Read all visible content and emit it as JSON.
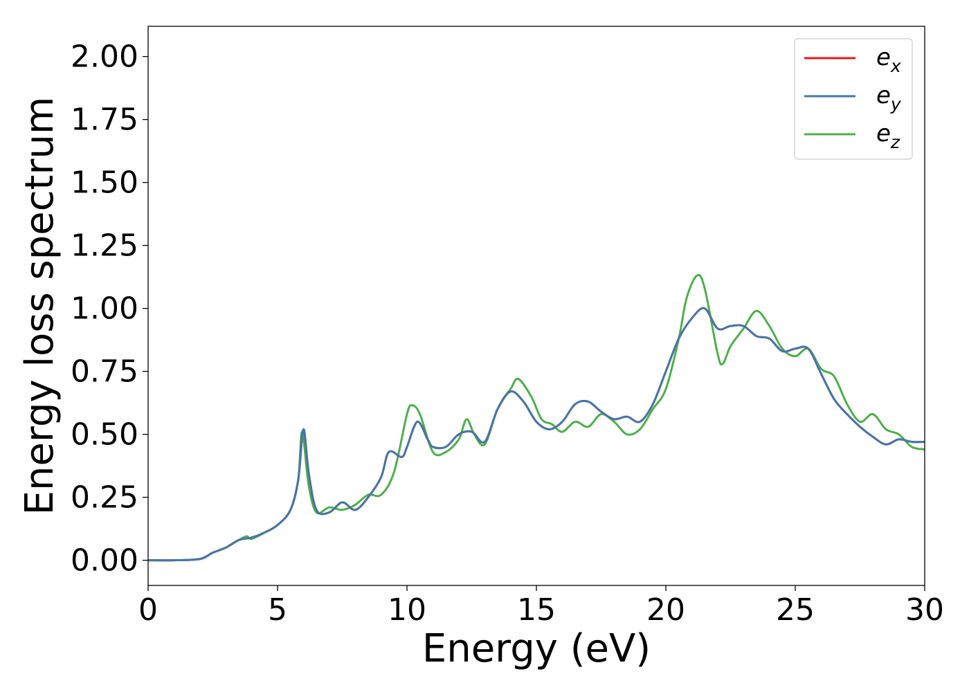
{
  "chart_data": {
    "type": "line",
    "title": "",
    "xlabel": "Energy (eV)",
    "ylabel": "Energy loss spectrum",
    "xlim": [
      0,
      30
    ],
    "ylim": [
      -0.1,
      2.12
    ],
    "x_ticks": [
      "0",
      "5",
      "10",
      "15",
      "20",
      "25",
      "30"
    ],
    "y_ticks": [
      "0.00",
      "0.25",
      "0.50",
      "0.75",
      "1.00",
      "1.25",
      "1.50",
      "1.75",
      "2.00"
    ],
    "grid": false,
    "legend_position": "top-right",
    "series": [
      {
        "name": "e_x",
        "label_base": "e",
        "label_sub": "x",
        "color": "#e41a1c",
        "points": [
          [
            0,
            0.0
          ],
          [
            1,
            0.0
          ],
          [
            2,
            0.005
          ],
          [
            2.5,
            0.03
          ],
          [
            3,
            0.05
          ],
          [
            3.5,
            0.08
          ],
          [
            4,
            0.09
          ],
          [
            4.5,
            0.11
          ],
          [
            5,
            0.14
          ],
          [
            5.5,
            0.2
          ],
          [
            5.8,
            0.32
          ],
          [
            6.0,
            0.52
          ],
          [
            6.2,
            0.35
          ],
          [
            6.5,
            0.2
          ],
          [
            7,
            0.19
          ],
          [
            7.5,
            0.23
          ],
          [
            8,
            0.2
          ],
          [
            8.5,
            0.25
          ],
          [
            9,
            0.33
          ],
          [
            9.3,
            0.43
          ],
          [
            9.8,
            0.41
          ],
          [
            10,
            0.45
          ],
          [
            10.4,
            0.55
          ],
          [
            10.8,
            0.48
          ],
          [
            11,
            0.45
          ],
          [
            11.5,
            0.45
          ],
          [
            12,
            0.5
          ],
          [
            12.5,
            0.51
          ],
          [
            13,
            0.47
          ],
          [
            13.5,
            0.6
          ],
          [
            14,
            0.67
          ],
          [
            14.5,
            0.63
          ],
          [
            15,
            0.55
          ],
          [
            15.5,
            0.52
          ],
          [
            16,
            0.55
          ],
          [
            16.5,
            0.62
          ],
          [
            17,
            0.63
          ],
          [
            17.5,
            0.59
          ],
          [
            18,
            0.56
          ],
          [
            18.5,
            0.57
          ],
          [
            19,
            0.55
          ],
          [
            19.5,
            0.62
          ],
          [
            20,
            0.75
          ],
          [
            20.5,
            0.88
          ],
          [
            21,
            0.96
          ],
          [
            21.5,
            1.0
          ],
          [
            22,
            0.92
          ],
          [
            22.5,
            0.93
          ],
          [
            23,
            0.93
          ],
          [
            23.5,
            0.89
          ],
          [
            24,
            0.88
          ],
          [
            24.5,
            0.83
          ],
          [
            25,
            0.84
          ],
          [
            25.5,
            0.84
          ],
          [
            26,
            0.74
          ],
          [
            26.5,
            0.64
          ],
          [
            27,
            0.58
          ],
          [
            27.5,
            0.53
          ],
          [
            28,
            0.49
          ],
          [
            28.5,
            0.46
          ],
          [
            29,
            0.48
          ],
          [
            29.5,
            0.47
          ],
          [
            30,
            0.47
          ]
        ]
      },
      {
        "name": "e_y",
        "label_base": "e",
        "label_sub": "y",
        "color": "#4477aa",
        "points": [
          [
            0,
            0.0
          ],
          [
            1,
            0.0
          ],
          [
            2,
            0.005
          ],
          [
            2.5,
            0.03
          ],
          [
            3,
            0.05
          ],
          [
            3.5,
            0.08
          ],
          [
            4,
            0.09
          ],
          [
            4.5,
            0.11
          ],
          [
            5,
            0.14
          ],
          [
            5.5,
            0.2
          ],
          [
            5.8,
            0.32
          ],
          [
            6.0,
            0.52
          ],
          [
            6.2,
            0.35
          ],
          [
            6.5,
            0.2
          ],
          [
            7,
            0.19
          ],
          [
            7.5,
            0.23
          ],
          [
            8,
            0.2
          ],
          [
            8.5,
            0.25
          ],
          [
            9,
            0.33
          ],
          [
            9.3,
            0.43
          ],
          [
            9.8,
            0.41
          ],
          [
            10,
            0.45
          ],
          [
            10.4,
            0.55
          ],
          [
            10.8,
            0.48
          ],
          [
            11,
            0.45
          ],
          [
            11.5,
            0.45
          ],
          [
            12,
            0.5
          ],
          [
            12.5,
            0.51
          ],
          [
            13,
            0.47
          ],
          [
            13.5,
            0.6
          ],
          [
            14,
            0.67
          ],
          [
            14.5,
            0.63
          ],
          [
            15,
            0.55
          ],
          [
            15.5,
            0.52
          ],
          [
            16,
            0.55
          ],
          [
            16.5,
            0.62
          ],
          [
            17,
            0.63
          ],
          [
            17.5,
            0.59
          ],
          [
            18,
            0.56
          ],
          [
            18.5,
            0.57
          ],
          [
            19,
            0.55
          ],
          [
            19.5,
            0.62
          ],
          [
            20,
            0.75
          ],
          [
            20.5,
            0.88
          ],
          [
            21,
            0.96
          ],
          [
            21.5,
            1.0
          ],
          [
            22,
            0.92
          ],
          [
            22.5,
            0.93
          ],
          [
            23,
            0.93
          ],
          [
            23.5,
            0.89
          ],
          [
            24,
            0.88
          ],
          [
            24.5,
            0.83
          ],
          [
            25,
            0.84
          ],
          [
            25.5,
            0.84
          ],
          [
            26,
            0.74
          ],
          [
            26.5,
            0.64
          ],
          [
            27,
            0.58
          ],
          [
            27.5,
            0.53
          ],
          [
            28,
            0.49
          ],
          [
            28.5,
            0.46
          ],
          [
            29,
            0.48
          ],
          [
            29.5,
            0.47
          ],
          [
            30,
            0.47
          ]
        ]
      },
      {
        "name": "e_z",
        "label_base": "e",
        "label_sub": "z",
        "color": "#4daf4a",
        "points": [
          [
            0,
            0.0
          ],
          [
            1,
            0.0
          ],
          [
            2,
            0.005
          ],
          [
            2.5,
            0.03
          ],
          [
            3,
            0.05
          ],
          [
            3.5,
            0.08
          ],
          [
            3.8,
            0.095
          ],
          [
            4,
            0.085
          ],
          [
            4.5,
            0.11
          ],
          [
            5,
            0.14
          ],
          [
            5.5,
            0.2
          ],
          [
            5.8,
            0.32
          ],
          [
            5.95,
            0.51
          ],
          [
            6.2,
            0.3
          ],
          [
            6.5,
            0.19
          ],
          [
            7,
            0.21
          ],
          [
            7.5,
            0.2
          ],
          [
            8,
            0.22
          ],
          [
            8.5,
            0.26
          ],
          [
            9,
            0.26
          ],
          [
            9.5,
            0.35
          ],
          [
            10,
            0.58
          ],
          [
            10.2,
            0.615
          ],
          [
            10.5,
            0.58
          ],
          [
            11,
            0.43
          ],
          [
            11.5,
            0.43
          ],
          [
            12,
            0.48
          ],
          [
            12.3,
            0.56
          ],
          [
            12.6,
            0.5
          ],
          [
            13,
            0.46
          ],
          [
            13.5,
            0.6
          ],
          [
            14,
            0.68
          ],
          [
            14.3,
            0.72
          ],
          [
            14.8,
            0.65
          ],
          [
            15.2,
            0.56
          ],
          [
            15.6,
            0.54
          ],
          [
            16,
            0.51
          ],
          [
            16.5,
            0.55
          ],
          [
            17,
            0.53
          ],
          [
            17.5,
            0.58
          ],
          [
            18,
            0.55
          ],
          [
            18.5,
            0.5
          ],
          [
            19,
            0.52
          ],
          [
            19.5,
            0.6
          ],
          [
            20,
            0.68
          ],
          [
            20.5,
            0.88
          ],
          [
            20.8,
            1.04
          ],
          [
            21.2,
            1.13
          ],
          [
            21.5,
            1.08
          ],
          [
            22,
            0.82
          ],
          [
            22.2,
            0.78
          ],
          [
            22.5,
            0.85
          ],
          [
            23,
            0.92
          ],
          [
            23.5,
            0.99
          ],
          [
            24,
            0.93
          ],
          [
            24.5,
            0.84
          ],
          [
            25,
            0.81
          ],
          [
            25.5,
            0.84
          ],
          [
            26,
            0.76
          ],
          [
            26.5,
            0.73
          ],
          [
            27,
            0.62
          ],
          [
            27.5,
            0.55
          ],
          [
            28,
            0.58
          ],
          [
            28.5,
            0.52
          ],
          [
            29,
            0.5
          ],
          [
            29.5,
            0.45
          ],
          [
            30,
            0.44
          ]
        ]
      }
    ]
  }
}
